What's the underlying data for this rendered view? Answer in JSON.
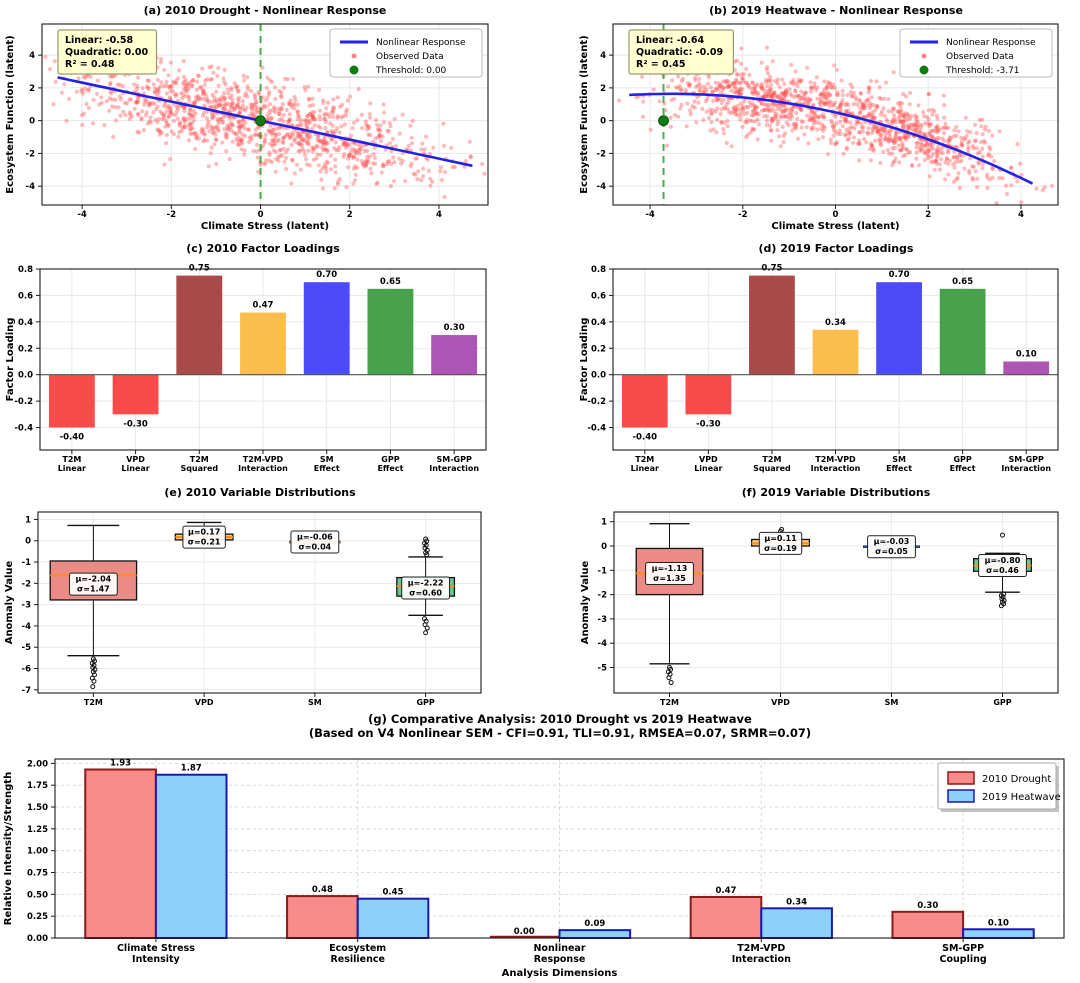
{
  "chart_data": [
    {
      "id": "a",
      "type": "scatter",
      "title": "(a) 2010 Drought - Nonlinear Response",
      "xlabel": "Climate Stress (latent)",
      "ylabel": "Ecosystem Function (latent)",
      "xlim": [
        -4.9,
        5.1
      ],
      "ylim": [
        -5.15,
        5.9
      ],
      "xticks": [
        -4,
        -2,
        0,
        2,
        4
      ],
      "xtick_labels": [
        "-4",
        "-2",
        "0",
        "2",
        "4"
      ],
      "yticks": [
        -4,
        -2,
        0,
        2,
        4
      ],
      "ytick_labels": [
        "-4",
        "-2",
        "0",
        "2",
        "4"
      ],
      "annotation_lines": [
        "Linear: -0.58",
        "Quadratic: 0.00",
        "R² = 0.48"
      ],
      "legend": [
        {
          "label": "Nonlinear Response",
          "type": "line"
        },
        {
          "label": "Observed Data",
          "type": "dot"
        },
        {
          "label": "Threshold: 0.00",
          "type": "bigdot"
        }
      ],
      "threshold": {
        "x": 0,
        "y": 0
      },
      "fit": {
        "c0": 0,
        "c1": -0.58,
        "c2": 0,
        "x_start": -4.55,
        "x_end": 4.75
      },
      "points": {
        "n": 1200,
        "seed": 20101,
        "clusters": [
          {
            "w": 0.55,
            "mean": 0.9,
            "sd": 1.6
          },
          {
            "w": 0.45,
            "mean": -1.8,
            "sd": 1.35
          }
        ],
        "noise_sd": 1.22
      },
      "colors": {
        "point": "#FF4D4D",
        "line": "#2121E8",
        "threshold_line": "#2E9E2E",
        "dot": "#0E7C0E",
        "annotation_bg": "#FFFFD0",
        "annotation_border": "#9A9A70"
      }
    },
    {
      "id": "b",
      "type": "scatter",
      "title": "(b) 2019 Heatwave - Nonlinear Response",
      "xlabel": "Climate Stress (latent)",
      "ylabel": "Ecosystem Function (latent)",
      "xlim": [
        -4.8,
        4.8
      ],
      "ylim": [
        -5.15,
        5.9
      ],
      "xticks": [
        -4,
        -2,
        0,
        2,
        4
      ],
      "xtick_labels": [
        "-4",
        "-2",
        "0",
        "2",
        "4"
      ],
      "yticks": [
        -4,
        -2,
        0,
        2,
        4
      ],
      "ytick_labels": [
        "-4",
        "-2",
        "0",
        "2",
        "4"
      ],
      "annotation_lines": [
        "Linear: -0.64",
        "Quadratic: -0.09",
        "R² = 0.45"
      ],
      "legend": [
        {
          "label": "Nonlinear Response",
          "type": "line"
        },
        {
          "label": "Observed Data",
          "type": "dot"
        },
        {
          "label": "Threshold: -3.71",
          "type": "bigdot"
        }
      ],
      "threshold": {
        "x": -3.71,
        "y": 0
      },
      "fit": {
        "c0": 0.5,
        "c1": -0.64,
        "c2": -0.09,
        "x_start": -4.45,
        "x_end": 4.25
      },
      "points": {
        "n": 1250,
        "seed": 20192,
        "clusters": [
          {
            "w": 0.45,
            "mean": -1.7,
            "sd": 1.05
          },
          {
            "w": 0.55,
            "mean": 1.4,
            "sd": 1.15
          }
        ],
        "noise_sd": 1.05
      },
      "colors": {
        "point": "#FF4D4D",
        "line": "#2121E8",
        "threshold_line": "#2E9E2E",
        "dot": "#0E7C0E",
        "annotation_bg": "#FFFFD0",
        "annotation_border": "#9A9A70"
      }
    },
    {
      "id": "c",
      "type": "bar",
      "title": "(c) 2010 Factor Loadings",
      "ylabel": "Factor Loading",
      "categories": [
        [
          "T2M",
          "Linear"
        ],
        [
          "VPD",
          "Linear"
        ],
        [
          "T2M",
          "Squared"
        ],
        [
          "T2M-VPD",
          "Interaction"
        ],
        [
          "SM",
          "Effect"
        ],
        [
          "GPP",
          "Effect"
        ],
        [
          "SM-GPP",
          "Interaction"
        ]
      ],
      "values": [
        -0.4,
        -0.3,
        0.75,
        0.47,
        0.7,
        0.65,
        0.3
      ],
      "value_labels": [
        "-0.40",
        "-0.30",
        "0.75",
        "0.47",
        "0.70",
        "0.65",
        "0.30"
      ],
      "bar_colors": [
        "#FA4B4B",
        "#FA4B4B",
        "#A94A4A",
        "#FBBE4D",
        "#4B4BFA",
        "#47A24B",
        "#AC55B5"
      ],
      "ylim": [
        -0.57,
        0.8
      ],
      "yticks": [
        0.8,
        0.6,
        0.4,
        0.2,
        0.0,
        -0.2,
        -0.4
      ],
      "ytick_labels": [
        "0.8",
        "0.6",
        "0.4",
        "0.2",
        "0.0",
        "-0.2",
        "-0.4"
      ]
    },
    {
      "id": "d",
      "type": "bar",
      "title": "(d) 2019 Factor Loadings",
      "ylabel": "Factor Loading",
      "categories": [
        [
          "T2M",
          "Linear"
        ],
        [
          "VPD",
          "Linear"
        ],
        [
          "T2M",
          "Squared"
        ],
        [
          "T2M-VPD",
          "Interaction"
        ],
        [
          "SM",
          "Effect"
        ],
        [
          "GPP",
          "Effect"
        ],
        [
          "SM-GPP",
          "Interaction"
        ]
      ],
      "values": [
        -0.4,
        -0.3,
        0.75,
        0.34,
        0.7,
        0.65,
        0.1
      ],
      "value_labels": [
        "-0.40",
        "-0.30",
        "0.75",
        "0.34",
        "0.70",
        "0.65",
        "0.10"
      ],
      "bar_colors": [
        "#FA4B4B",
        "#FA4B4B",
        "#A94A4A",
        "#FBBE4D",
        "#4B4BFA",
        "#47A24B",
        "#AC55B5"
      ],
      "ylim": [
        -0.57,
        0.8
      ],
      "yticks": [
        0.8,
        0.6,
        0.4,
        0.2,
        0.0,
        -0.2,
        -0.4
      ],
      "ytick_labels": [
        "0.8",
        "0.6",
        "0.4",
        "0.2",
        "0.0",
        "-0.2",
        "-0.4"
      ]
    },
    {
      "id": "e",
      "type": "box",
      "title": "(e) 2010 Variable Distributions",
      "ylabel": "Anomaly Value",
      "categories": [
        "T2M",
        "VPD",
        "SM",
        "GPP"
      ],
      "ylim": [
        -7.15,
        1.35
      ],
      "yticks": [
        1,
        0,
        -1,
        -2,
        -3,
        -4,
        -5,
        -6,
        -7
      ],
      "ytick_labels": [
        "1",
        "0",
        "-1",
        "-2",
        "-3",
        "-4",
        "-5",
        "-6",
        "-7"
      ],
      "boxes": [
        {
          "label": "T2M",
          "mu": "μ=-2.04",
          "sigma": "σ=1.47",
          "mu_val": -2.04,
          "q1": -2.78,
          "median": -1.62,
          "q3": -0.95,
          "whisker_low": -5.4,
          "whisker_high": 0.72,
          "outliers": [
            -5.55,
            -5.65,
            -5.75,
            -5.85,
            -5.95,
            -6.05,
            -6.15,
            -6.3,
            -6.45,
            -6.6,
            -6.85
          ],
          "fill": "#EA8B85",
          "width": 0.78
        },
        {
          "label": "VPD",
          "mu": "μ=0.17",
          "sigma": "σ=0.21",
          "mu_val": 0.17,
          "q1": 0.04,
          "median": 0.17,
          "q3": 0.31,
          "whisker_low": -0.08,
          "whisker_high": 0.86,
          "outliers": [],
          "fill": "#FBC97E",
          "width": 0.52
        },
        {
          "label": "SM",
          "mu": "μ=-0.06",
          "sigma": "σ=0.04",
          "mu_val": -0.06,
          "q1": -0.09,
          "median": -0.06,
          "q3": -0.03,
          "whisker_low": -0.16,
          "whisker_high": 0.04,
          "outliers": [],
          "fill": "#FAEBD7",
          "width": 0.45
        },
        {
          "label": "GPP",
          "mu": "μ=-2.22",
          "sigma": "σ=0.60",
          "mu_val": -2.22,
          "q1": -2.6,
          "median": -2.12,
          "q3": -1.73,
          "whisker_low": -3.5,
          "whisker_high": -0.76,
          "outliers": [
            0.08,
            -0.02,
            -0.12,
            -0.22,
            -0.34,
            -0.45,
            -0.56,
            -0.66,
            -3.66,
            -3.78,
            -3.94,
            -4.1,
            -4.32
          ],
          "fill": "#72C393",
          "width": 0.52
        }
      ]
    },
    {
      "id": "f",
      "type": "box",
      "title": "(f) 2019 Variable Distributions",
      "ylabel": "Anomaly Value",
      "categories": [
        "T2M",
        "VPD",
        "SM",
        "GPP"
      ],
      "ylim": [
        -6.05,
        1.4
      ],
      "yticks": [
        1,
        0,
        -1,
        -2,
        -3,
        -4,
        -5
      ],
      "ytick_labels": [
        "1",
        "0",
        "-1",
        "-2",
        "-3",
        "-4",
        "-5"
      ],
      "boxes": [
        {
          "label": "T2M",
          "mu": "μ=-1.13",
          "sigma": "σ=1.35",
          "mu_val": -1.13,
          "q1": -2.0,
          "median": -1.12,
          "q3": -0.1,
          "whisker_low": -4.85,
          "whisker_high": 0.92,
          "outliers": [
            -5.0,
            -5.08,
            -5.18,
            -5.28,
            -5.42,
            -5.62
          ],
          "fill": "#EA8B85",
          "width": 0.6
        },
        {
          "label": "VPD",
          "mu": "μ=0.11",
          "sigma": "σ=0.19",
          "mu_val": 0.11,
          "q1": 0.0,
          "median": 0.11,
          "q3": 0.27,
          "whisker_low": -0.12,
          "whisker_high": 0.5,
          "outliers": [
            0.6,
            0.68
          ],
          "fill": "#FBC97E",
          "width": 0.52
        },
        {
          "label": "SM",
          "mu": "μ=-0.03",
          "sigma": "σ=0.05",
          "mu_val": -0.03,
          "q1": -0.055,
          "median": -0.025,
          "q3": 0.0,
          "whisker_low": -0.11,
          "whisker_high": 0.05,
          "outliers": [],
          "fill": "#A8CBEA",
          "median_color": "#2B5FA8",
          "width": 0.5
        },
        {
          "label": "GPP",
          "mu": "μ=-0.80",
          "sigma": "σ=0.46",
          "mu_val": -0.8,
          "q1": -1.04,
          "median": -0.8,
          "q3": -0.52,
          "whisker_low": -1.9,
          "whisker_high": -0.3,
          "outliers": [
            0.45,
            -1.97,
            -2.04,
            -2.1,
            -2.17,
            -2.24,
            -2.31,
            -2.38,
            -2.46
          ],
          "fill": "#72C393",
          "width": 0.52
        }
      ]
    },
    {
      "id": "g",
      "type": "grouped_bar",
      "title": "(g) Comparative Analysis: 2010 Drought vs 2019 Heatwave",
      "subtitle": "(Based on V4 Nonlinear SEM - CFI=0.91, TLI=0.91, RMSEA=0.07, SRMR=0.07)",
      "xlabel": "Analysis Dimensions",
      "ylabel": "Relative Intensity/Strength",
      "categories": [
        [
          "Climate Stress",
          "Intensity"
        ],
        [
          "Ecosystem",
          "Resilience"
        ],
        [
          "Nonlinear",
          "Response"
        ],
        [
          "T2M-VPD",
          "Interaction"
        ],
        [
          "SM-GPP",
          "Coupling"
        ]
      ],
      "series": [
        {
          "name": "2010 Drought",
          "values": [
            1.93,
            0.48,
            0.0,
            0.47,
            0.3
          ],
          "value_labels": [
            "1.93",
            "0.48",
            "0.00",
            "0.47",
            "0.30"
          ],
          "fill": "#F98B8B",
          "edge": "#8B1A1A"
        },
        {
          "name": "2019 Heatwave",
          "values": [
            1.87,
            0.45,
            0.09,
            0.34,
            0.1
          ],
          "value_labels": [
            "1.87",
            "0.45",
            "0.09",
            "0.34",
            "0.10"
          ],
          "fill": "#8DD0FA",
          "edge": "#1A1AA8"
        }
      ],
      "ylim": [
        0,
        2.05
      ],
      "yticks": [
        0,
        0.25,
        0.5,
        0.75,
        1.0,
        1.25,
        1.5,
        1.75,
        2.0
      ],
      "ytick_labels": [
        "0.00",
        "0.25",
        "0.50",
        "0.75",
        "1.00",
        "1.25",
        "1.50",
        "1.75",
        "2.00"
      ],
      "legend_position": "upper right"
    }
  ]
}
